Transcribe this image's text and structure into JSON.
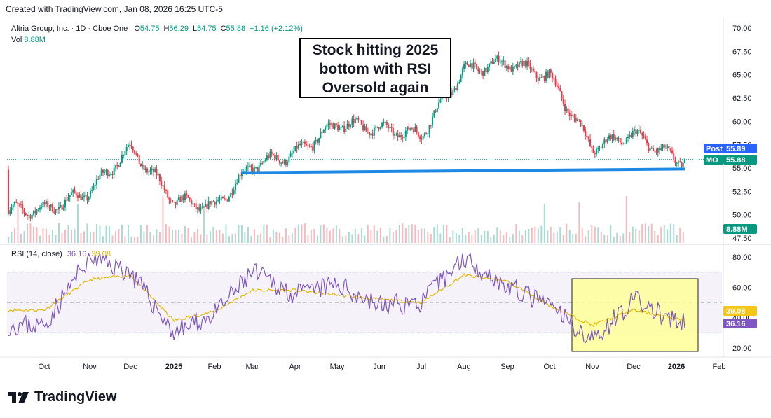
{
  "header": {
    "credit": "Created with TradingView.com, Jan 08, 2026 16:25 UTC-5"
  },
  "legend": {
    "title": "Altria Group, Inc. · 1D · Cboe One",
    "o_label": "O",
    "o": "54.75",
    "h_label": "H",
    "h": "56.29",
    "l_label": "L",
    "l": "54.75",
    "c_label": "C",
    "c": "55.88",
    "change": "+1.16 (+2.12%)",
    "vol_label": "Vol",
    "vol": "8.88M"
  },
  "annotation": {
    "line1": "Stock hitting 2025",
    "line2": "bottom with RSI",
    "line3": "Oversold again"
  },
  "rsi_legend": {
    "label": "RSI (14, close)",
    "rsi": "36.16",
    "ma": "39.08"
  },
  "badges": {
    "post_label": "Post",
    "post_value": "55.89",
    "mo_label": "MO",
    "mo_value": "55.88",
    "vol_value": "8.88M",
    "rsi_ma_value": "39.08",
    "rsi_value": "36.16"
  },
  "brand": {
    "name": "TradingView"
  },
  "colors": {
    "up": "#089981",
    "down": "#f23645",
    "support": "#1e88e5",
    "rsi": "#7e57c2",
    "rsi_ma": "#e6b800",
    "highlight": "#ffff99"
  },
  "chart_data": [
    {
      "type": "candlestick",
      "title": "Altria Group, Inc. · 1D · Cboe One",
      "y_ticks": [
        "70.00",
        "67.50",
        "65.00",
        "62.50",
        "60.00",
        "57.50",
        "55.00",
        "52.50",
        "50.00",
        "47.50"
      ],
      "ylim": [
        47.5,
        70
      ],
      "x_ticks": [
        "Oct",
        "Nov",
        "Dec",
        "2025",
        "Feb",
        "Mar",
        "Apr",
        "May",
        "Jun",
        "Jul",
        "Aug",
        "Sep",
        "Oct",
        "Nov",
        "Dec",
        "2026",
        "Feb"
      ],
      "x": [
        "Oct",
        "Nov",
        "Dec",
        "2025",
        "Feb",
        "Mar",
        "Apr",
        "May",
        "Jun",
        "Jul",
        "Aug",
        "Sep",
        "Oct",
        "Nov",
        "Dec",
        "2026"
      ],
      "approx_close": [
        50.5,
        52.5,
        57.2,
        51.5,
        50.8,
        55.3,
        56.5,
        59.8,
        59.2,
        58.6,
        65.5,
        66.3,
        64.8,
        57.2,
        58.6,
        55.88
      ],
      "last_close": 55.88,
      "post_price": 55.89,
      "volume_last": "8.88M",
      "support_line": {
        "from": [
          "Mar",
          54.5
        ],
        "to": [
          "2026",
          54.9
        ]
      }
    },
    {
      "type": "line",
      "title": "RSI (14, close)",
      "y_ticks": [
        "80.00",
        "60.00",
        "40.00",
        "20.00"
      ],
      "ylim": [
        15,
        83
      ],
      "bands": [
        70,
        30
      ],
      "x": [
        "Oct",
        "Nov",
        "Dec",
        "2025",
        "Feb",
        "Mar",
        "Apr",
        "May",
        "Jun",
        "Jul",
        "Aug",
        "Sep",
        "Oct",
        "Nov",
        "Dec",
        "2026"
      ],
      "series": [
        {
          "name": "RSI",
          "values": [
            35,
            80,
            70,
            30,
            42,
            70,
            55,
            62,
            48,
            50,
            80,
            60,
            48,
            25,
            52,
            36.16
          ]
        },
        {
          "name": "MA",
          "values": [
            45,
            65,
            68,
            38,
            44,
            58,
            58,
            55,
            52,
            50,
            68,
            64,
            48,
            35,
            45,
            39.08
          ]
        }
      ],
      "highlight_region": {
        "from": "Oct",
        "to": "2026"
      }
    }
  ]
}
